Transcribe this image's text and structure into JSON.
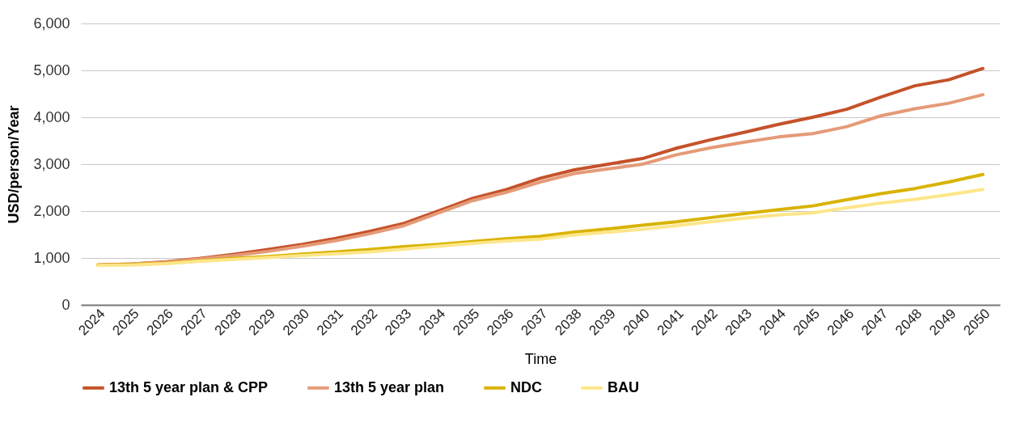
{
  "chart_data": {
    "type": "line",
    "xlabel": "Time",
    "ylabel": "USD/person/Year",
    "categories": [
      "2024",
      "2025",
      "2026",
      "2027",
      "2028",
      "2029",
      "2030",
      "2031",
      "2032",
      "2033",
      "2034",
      "2035",
      "2036",
      "2037",
      "2038",
      "2039",
      "2040",
      "2041",
      "2042",
      "2043",
      "2044",
      "2045",
      "2046",
      "2047",
      "2048",
      "2049",
      "2050"
    ],
    "series": [
      {
        "name": "13th 5 year plan & CPP",
        "color": "#c5522a",
        "values": [
          850,
          870,
          920,
          990,
          1080,
          1180,
          1290,
          1420,
          1570,
          1740,
          2000,
          2270,
          2460,
          2700,
          2880,
          3000,
          3120,
          3340,
          3520,
          3680,
          3850,
          4000,
          4170,
          4430,
          4670,
          4800,
          5040
        ]
      },
      {
        "name": "13th 5 year plan",
        "color": "#e59a77",
        "values": [
          850,
          870,
          910,
          980,
          1050,
          1140,
          1250,
          1370,
          1520,
          1690,
          1960,
          2220,
          2400,
          2620,
          2800,
          2900,
          3000,
          3200,
          3350,
          3470,
          3580,
          3650,
          3800,
          4030,
          4180,
          4300,
          4480
        ]
      },
      {
        "name": "NDC",
        "color": "#d9b300",
        "values": [
          850,
          860,
          890,
          940,
          990,
          1030,
          1080,
          1130,
          1180,
          1240,
          1290,
          1350,
          1410,
          1460,
          1550,
          1620,
          1700,
          1770,
          1860,
          1950,
          2030,
          2110,
          2240,
          2370,
          2480,
          2620,
          2780
        ]
      },
      {
        "name": "BAU",
        "color": "#fde68a",
        "values": [
          840,
          850,
          880,
          930,
          970,
          1010,
          1050,
          1090,
          1130,
          1190,
          1250,
          1310,
          1360,
          1400,
          1490,
          1550,
          1610,
          1690,
          1770,
          1850,
          1920,
          1960,
          2070,
          2170,
          2250,
          2350,
          2460
        ]
      }
    ],
    "ylim": [
      0,
      6000
    ],
    "yticks": [
      {
        "value": 0,
        "label": "0"
      },
      {
        "value": 1000,
        "label": "1,000"
      },
      {
        "value": 2000,
        "label": "2,000"
      },
      {
        "value": 3000,
        "label": "3,000"
      },
      {
        "value": 4000,
        "label": "4,000"
      },
      {
        "value": 5000,
        "label": "5,000"
      },
      {
        "value": 6000,
        "label": "6,000"
      }
    ],
    "grid": "y",
    "legend": "bottom",
    "marker": "none",
    "line_style": "solid"
  }
}
